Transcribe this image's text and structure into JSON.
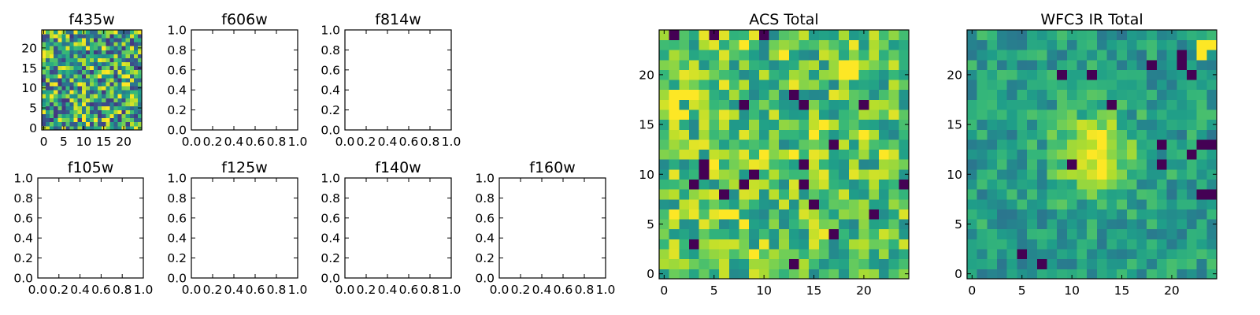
{
  "chart_data": [
    {
      "type": "heatmap",
      "title": "f435w",
      "xlim": [
        -0.5,
        24.5
      ],
      "ylim": [
        -0.5,
        24.5
      ],
      "xticks": [
        0,
        5,
        10,
        15,
        20
      ],
      "yticks": [
        0,
        5,
        10,
        15,
        20
      ],
      "grid_size": [
        25,
        25
      ],
      "colormap": "viridis",
      "noise": {
        "seed": 435,
        "base": 0.6,
        "amplitude": 0.45
      }
    },
    {
      "type": "heatmap",
      "title": "f606w",
      "xlim": [
        0,
        1
      ],
      "ylim": [
        0,
        1
      ],
      "xticks": [
        "0.0",
        "0.2",
        "0.4",
        "0.6",
        "0.8",
        "1.0"
      ],
      "yticks": [
        "0.0",
        "0.2",
        "0.4",
        "0.6",
        "0.8",
        "1.0"
      ],
      "empty": true
    },
    {
      "type": "heatmap",
      "title": "f814w",
      "xlim": [
        0,
        1
      ],
      "ylim": [
        0,
        1
      ],
      "xticks": [
        "0.0",
        "0.2",
        "0.4",
        "0.6",
        "0.8",
        "1.0"
      ],
      "yticks": [
        "0.0",
        "0.2",
        "0.4",
        "0.6",
        "0.8",
        "1.0"
      ],
      "empty": true
    },
    {
      "type": "heatmap",
      "title": "f105w",
      "xlim": [
        0,
        1
      ],
      "ylim": [
        0,
        1
      ],
      "xticks": [
        "0.0",
        "0.2",
        "0.4",
        "0.6",
        "0.8",
        "1.0"
      ],
      "yticks": [
        "0.0",
        "0.2",
        "0.4",
        "0.6",
        "0.8",
        "1.0"
      ],
      "empty": true
    },
    {
      "type": "heatmap",
      "title": "f125w",
      "xlim": [
        0,
        1
      ],
      "ylim": [
        0,
        1
      ],
      "xticks": [
        "0.0",
        "0.2",
        "0.4",
        "0.6",
        "0.8",
        "1.0"
      ],
      "yticks": [
        "0.0",
        "0.2",
        "0.4",
        "0.6",
        "0.8",
        "1.0"
      ],
      "empty": true
    },
    {
      "type": "heatmap",
      "title": "f140w",
      "xlim": [
        0,
        1
      ],
      "ylim": [
        0,
        1
      ],
      "xticks": [
        "0.0",
        "0.2",
        "0.4",
        "0.6",
        "0.8",
        "1.0"
      ],
      "yticks": [
        "0.0",
        "0.2",
        "0.4",
        "0.6",
        "0.8",
        "1.0"
      ],
      "empty": true
    },
    {
      "type": "heatmap",
      "title": "f160w",
      "xlim": [
        0,
        1
      ],
      "ylim": [
        0,
        1
      ],
      "xticks": [
        "0.0",
        "0.2",
        "0.4",
        "0.6",
        "0.8",
        "1.0"
      ],
      "yticks": [
        "0.0",
        "0.2",
        "0.4",
        "0.6",
        "0.8",
        "1.0"
      ],
      "empty": true
    },
    {
      "type": "heatmap",
      "title": "ACS Total",
      "xlim": [
        -0.5,
        24.5
      ],
      "ylim": [
        -0.5,
        24.5
      ],
      "xticks": [
        0,
        5,
        10,
        15,
        20
      ],
      "yticks": [
        0,
        5,
        10,
        15,
        20
      ],
      "grid_size": [
        25,
        25
      ],
      "colormap": "viridis",
      "noise": {
        "seed": 1201,
        "base": 0.72,
        "amplitude": 0.26
      },
      "dark_pixels": [
        [
          1,
          24
        ],
        [
          5,
          24
        ],
        [
          10,
          24
        ],
        [
          13,
          18
        ],
        [
          14,
          17
        ],
        [
          8,
          17
        ],
        [
          17,
          13
        ],
        [
          14,
          11
        ],
        [
          4,
          10
        ],
        [
          14,
          9
        ],
        [
          3,
          9
        ],
        [
          6,
          8
        ],
        [
          8,
          9
        ],
        [
          15,
          7
        ],
        [
          21,
          6
        ],
        [
          17,
          4
        ],
        [
          24,
          9
        ],
        [
          13,
          1
        ],
        [
          3,
          3
        ],
        [
          20,
          17
        ],
        [
          4,
          11
        ],
        [
          9,
          10
        ]
      ],
      "bright_pixels": [
        [
          18,
          21
        ],
        [
          19,
          21
        ],
        [
          18,
          20
        ],
        [
          19,
          20
        ],
        [
          1,
          18
        ],
        [
          2,
          18
        ],
        [
          3,
          18
        ],
        [
          1,
          17
        ],
        [
          1,
          16
        ],
        [
          2,
          16
        ],
        [
          16,
          15
        ],
        [
          15,
          14
        ],
        [
          13,
          12
        ],
        [
          10,
          12
        ],
        [
          5,
          11
        ],
        [
          6,
          6
        ],
        [
          7,
          6
        ],
        [
          8,
          5
        ],
        [
          1,
          6
        ],
        [
          9,
          2
        ],
        [
          22,
          12
        ],
        [
          20,
          14
        ],
        [
          12,
          22
        ],
        [
          8,
          23
        ]
      ]
    },
    {
      "type": "heatmap",
      "title": "WFC3 IR Total",
      "xlim": [
        -0.5,
        24.5
      ],
      "ylim": [
        -0.5,
        24.5
      ],
      "xticks": [
        0,
        5,
        10,
        15,
        20
      ],
      "yticks": [
        0,
        5,
        10,
        15,
        20
      ],
      "grid_size": [
        25,
        25
      ],
      "colormap": "viridis",
      "noise": {
        "seed": 777,
        "base": 0.55,
        "amplitude": 0.16
      },
      "blob": {
        "cx": 12.3,
        "cy": 12.0,
        "sigma": 2.6,
        "peak": 0.5
      },
      "dark_pixels": [
        [
          9,
          20
        ],
        [
          18,
          21
        ],
        [
          21,
          22
        ],
        [
          21,
          21
        ],
        [
          22,
          20
        ],
        [
          14,
          17
        ],
        [
          22,
          12
        ],
        [
          19,
          13
        ],
        [
          23,
          13
        ],
        [
          24,
          13
        ],
        [
          23,
          8
        ],
        [
          24,
          8
        ],
        [
          5,
          2
        ],
        [
          7,
          1
        ],
        [
          19,
          11
        ],
        [
          10,
          11
        ],
        [
          12,
          20
        ]
      ],
      "bright_pixels": [
        [
          24,
          23
        ],
        [
          23,
          23
        ],
        [
          23,
          22
        ]
      ]
    }
  ],
  "colors": {
    "viridis": [
      "#440154",
      "#482878",
      "#3e4989",
      "#31688e",
      "#26828e",
      "#1f9e89",
      "#35b779",
      "#6ece58",
      "#b5de2b",
      "#fde725"
    ]
  }
}
